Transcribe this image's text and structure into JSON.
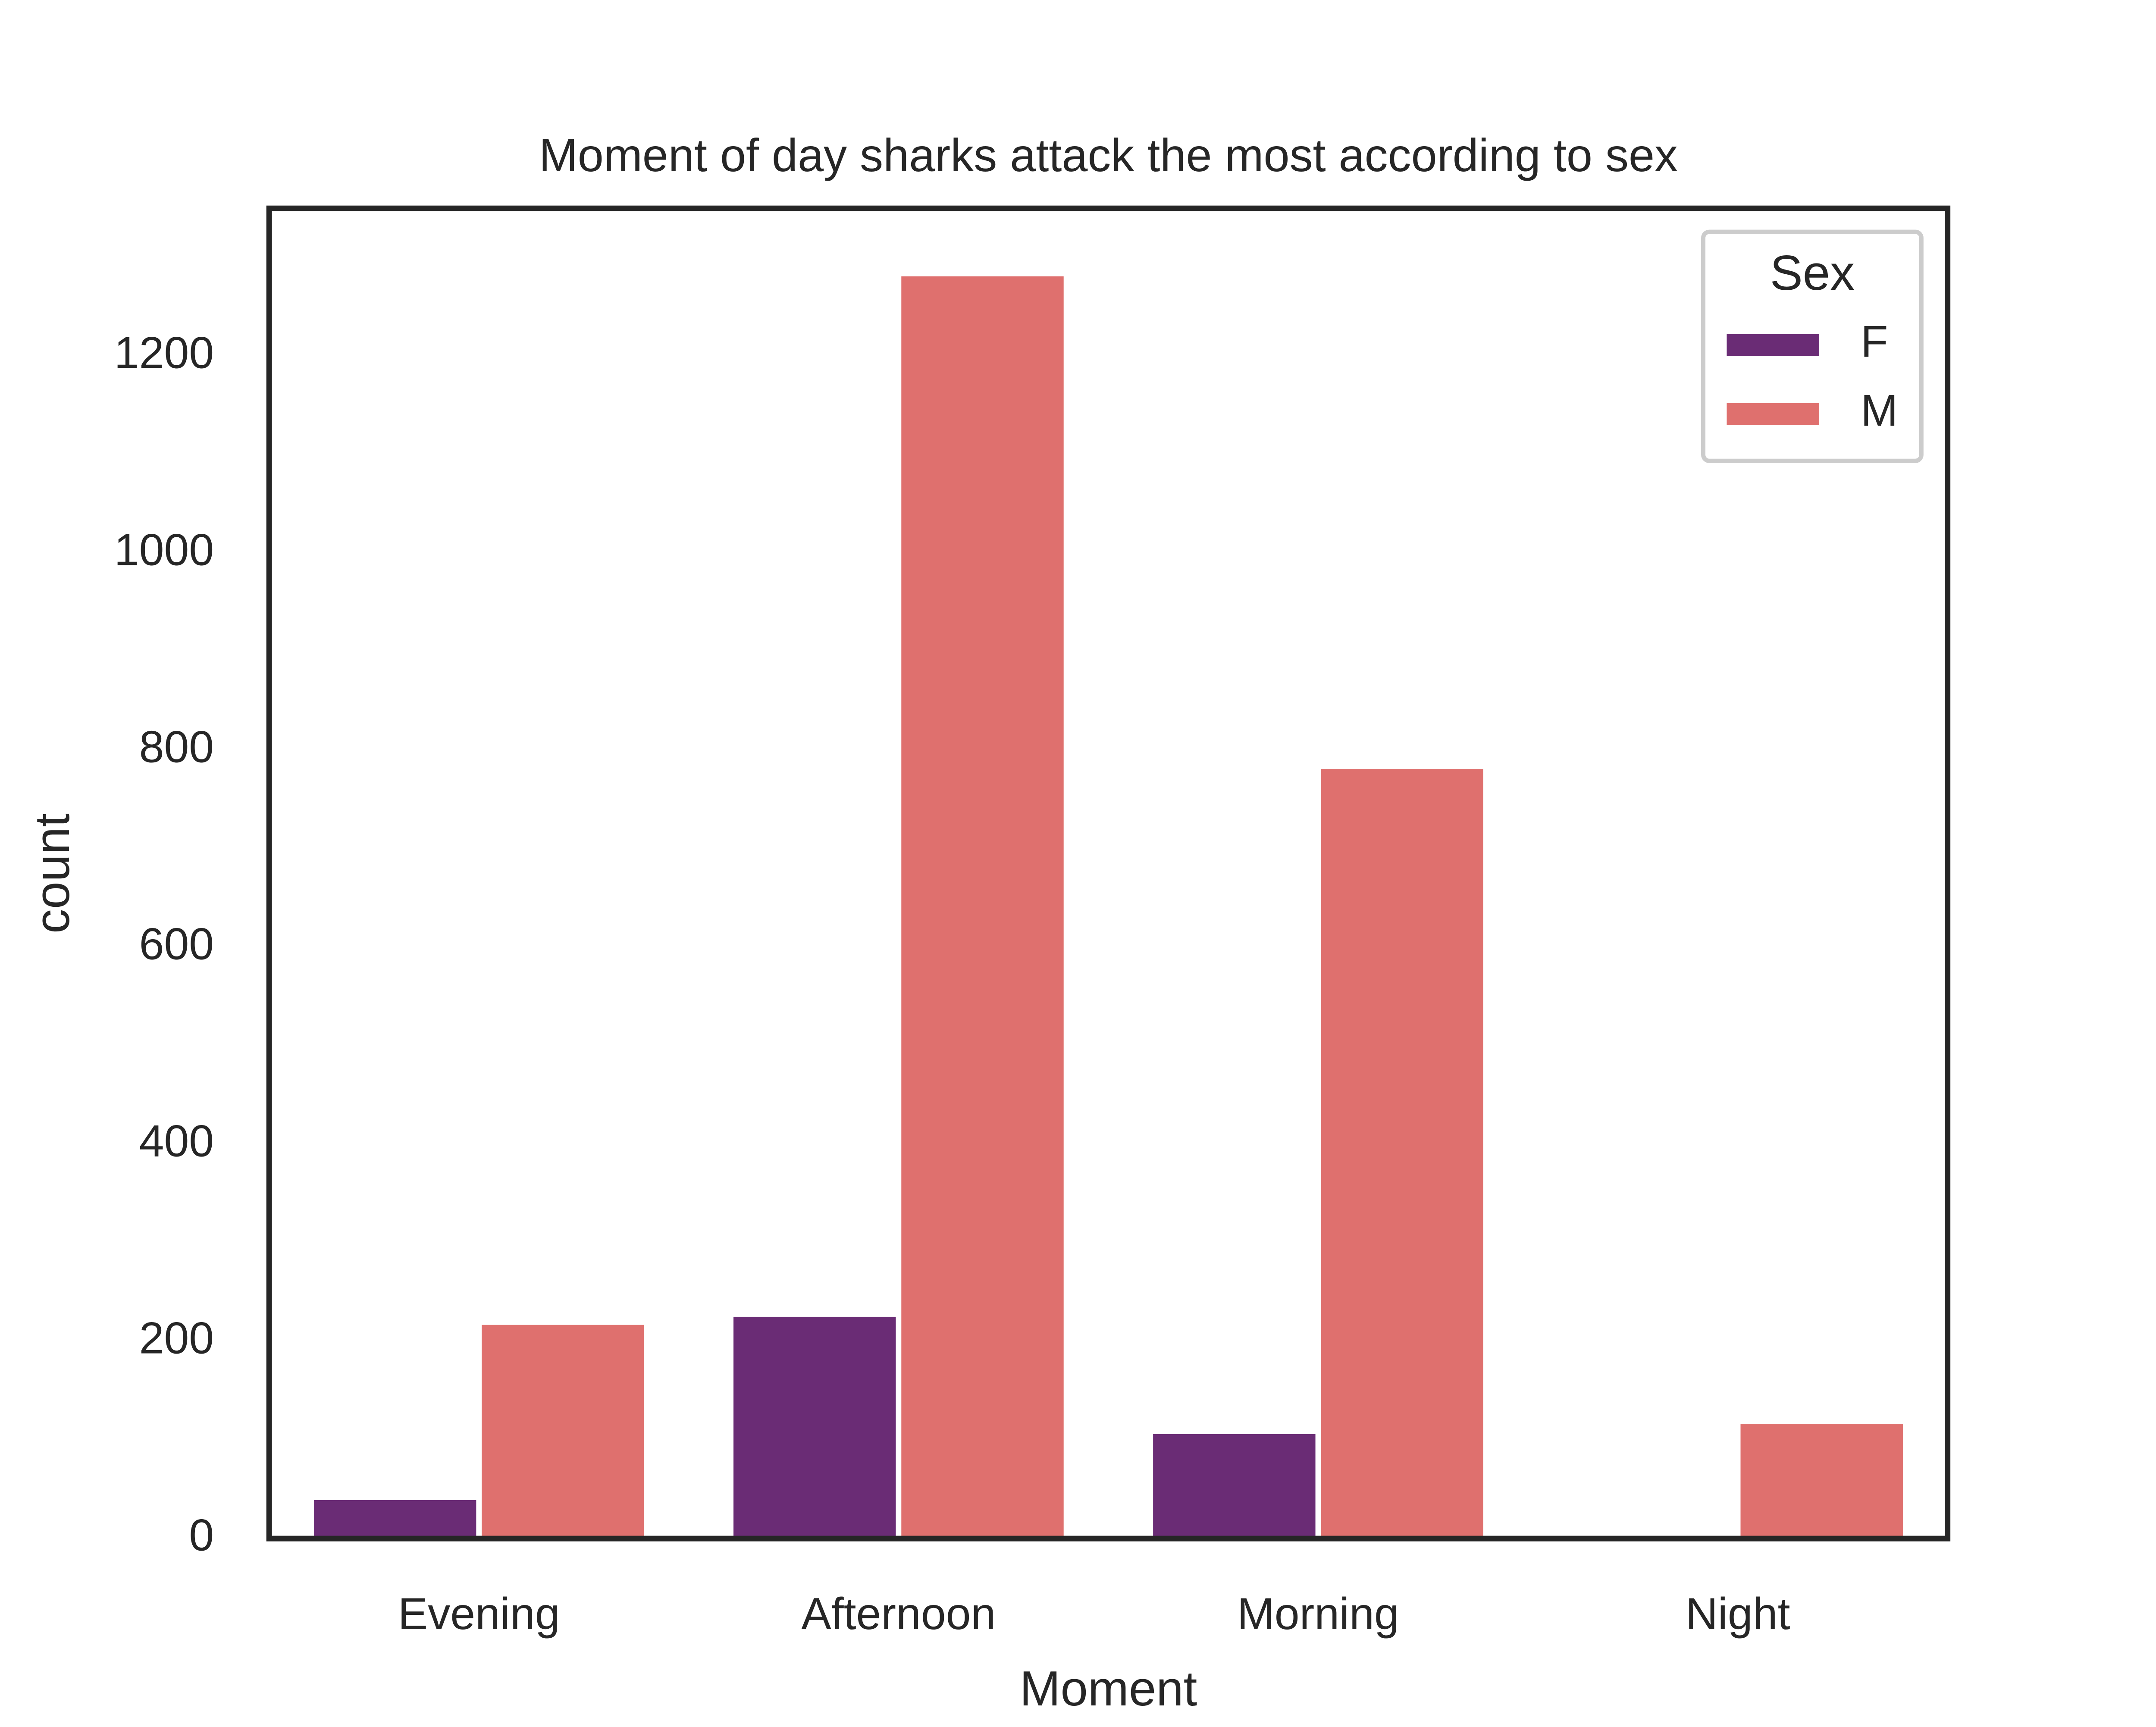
{
  "chart_data": {
    "type": "bar",
    "title": "Moment of day sharks attack the most according to sex",
    "xlabel": "Moment",
    "ylabel": "count",
    "categories": [
      "Evening",
      "Afternoon",
      "Morning",
      "Night"
    ],
    "series": [
      {
        "name": "F",
        "color": "#6a2c75",
        "values": [
          39,
          225,
          106,
          0
        ]
      },
      {
        "name": "M",
        "color": "#df706e",
        "values": [
          217,
          1281,
          781,
          116
        ]
      }
    ],
    "ylim": [
      0,
      1350
    ],
    "yticks": [
      0,
      200,
      400,
      600,
      800,
      1000,
      1200
    ],
    "ytick_labels": [
      "0",
      "200",
      "400",
      "600",
      "800",
      "1000",
      "1200"
    ],
    "legend": {
      "title": "Sex",
      "placement": "top-right"
    },
    "grid": false
  }
}
